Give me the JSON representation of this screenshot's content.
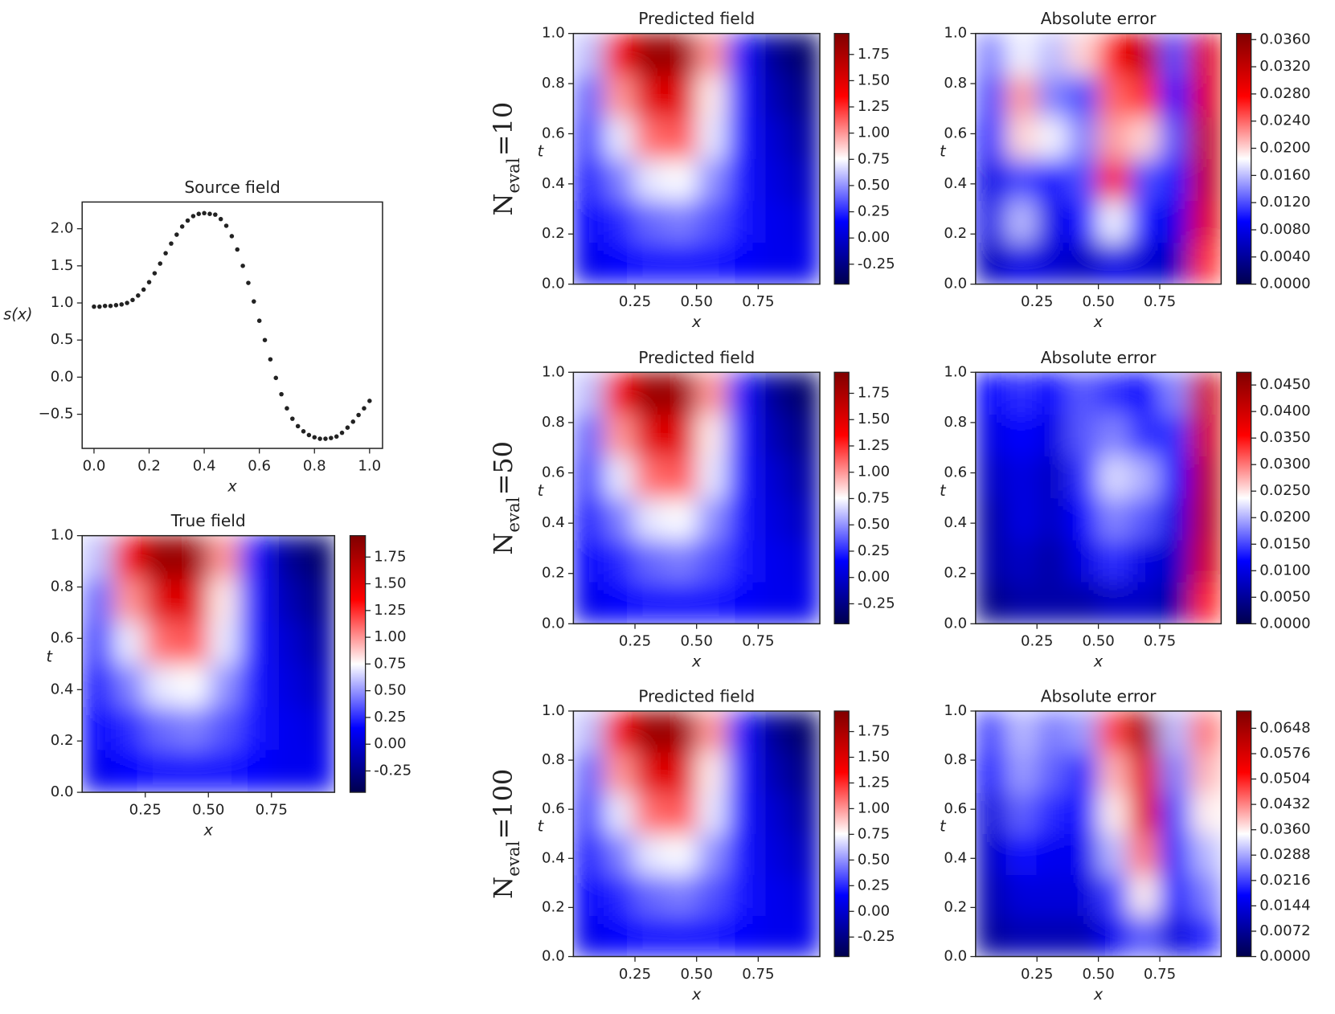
{
  "chart_data": [
    {
      "type": "scatter",
      "title": "Source field",
      "xlabel": "x",
      "ylabel": "s(x)",
      "color": "#222222",
      "x": [
        0,
        0.02,
        0.04,
        0.06,
        0.08,
        0.1,
        0.12,
        0.14,
        0.16,
        0.18,
        0.2,
        0.22,
        0.24,
        0.26,
        0.28,
        0.3,
        0.32,
        0.34,
        0.36,
        0.38,
        0.4,
        0.42,
        0.44,
        0.46,
        0.48,
        0.5,
        0.52,
        0.54,
        0.56,
        0.58,
        0.6,
        0.62,
        0.64,
        0.66,
        0.68,
        0.7,
        0.72,
        0.74,
        0.76,
        0.78,
        0.8,
        0.82,
        0.84,
        0.86,
        0.88,
        0.9,
        0.92,
        0.94,
        0.96,
        0.98,
        1.0
      ],
      "values": [
        0.95,
        0.95,
        0.96,
        0.96,
        0.97,
        0.98,
        1.0,
        1.04,
        1.1,
        1.18,
        1.28,
        1.4,
        1.53,
        1.67,
        1.8,
        1.92,
        2.03,
        2.11,
        2.17,
        2.2,
        2.21,
        2.2,
        2.19,
        2.13,
        2.04,
        1.9,
        1.72,
        1.5,
        1.27,
        1.02,
        0.76,
        0.5,
        0.24,
        -0.01,
        -0.23,
        -0.42,
        -0.56,
        -0.66,
        -0.73,
        -0.78,
        -0.81,
        -0.83,
        -0.83,
        -0.82,
        -0.8,
        -0.75,
        -0.68,
        -0.6,
        -0.51,
        -0.42,
        -0.32
      ],
      "xlim": [
        -0.043,
        1.047
      ],
      "ylim": [
        -0.96,
        2.36
      ],
      "xticks": [
        {
          "value": 0,
          "label": "0.0"
        },
        0.2,
        0.4,
        0.6,
        0.8,
        {
          "value": 1,
          "label": "1.0"
        }
      ],
      "yticks": [
        {
          "value": -0.5,
          "label": "−0.5"
        },
        {
          "value": 0,
          "label": "0.0"
        },
        0.5,
        {
          "value": 1,
          "label": "1.0"
        },
        1.5,
        {
          "value": 2,
          "label": "2.0"
        }
      ]
    },
    {
      "type": "heatmap",
      "title": "True field",
      "xlabel": "x",
      "ylabel": "t",
      "colormap": "seismic",
      "xlim": [
        0,
        1
      ],
      "ylim": [
        0,
        1
      ],
      "clim": [
        -0.45,
        1.95
      ],
      "xticks": [
        0.25,
        {
          "value": 0.5,
          "label": "0.50"
        },
        0.75
      ],
      "yticks": [
        {
          "value": 0,
          "label": "0.0"
        },
        0.2,
        0.4,
        0.6,
        0.8,
        {
          "value": 1,
          "label": "1.0"
        }
      ],
      "cticks": [
        {
          "value": -0.25,
          "label": "-0.25"
        },
        {
          "value": 0,
          "label": "0.00"
        },
        0.25,
        {
          "value": 0.5,
          "label": "0.50"
        },
        0.75,
        {
          "value": 1,
          "label": "1.00"
        },
        1.25,
        {
          "value": 1.5,
          "label": "1.50"
        },
        1.75
      ],
      "z": [
        [
          0.1,
          0.15,
          0.2,
          0.2,
          0.2,
          0.15,
          0.1,
          0.1
        ],
        [
          0.15,
          0.25,
          0.4,
          0.45,
          0.35,
          0.2,
          0.1,
          0.05
        ],
        [
          0.2,
          0.45,
          0.7,
          0.75,
          0.5,
          0.2,
          0.05,
          -0.05
        ],
        [
          0.3,
          0.7,
          1.1,
          1.15,
          0.7,
          0.2,
          0,
          -0.15
        ],
        [
          0.4,
          1.0,
          1.5,
          1.5,
          0.8,
          0.2,
          -0.1,
          -0.25
        ],
        [
          0.6,
          1.4,
          1.85,
          1.8,
          1.0,
          0.2,
          -0.2,
          -0.35
        ]
      ]
    },
    {
      "type": "heatmap",
      "title": "Predicted field",
      "xlabel": "x",
      "ylabel": "t",
      "colormap": "seismic",
      "row_label": [
        "N",
        "eval",
        "=10"
      ],
      "xlim": [
        0,
        1
      ],
      "ylim": [
        0,
        1
      ],
      "clim": [
        -0.44,
        1.95
      ],
      "xticks": [
        0.25,
        {
          "value": 0.5,
          "label": "0.50"
        },
        0.75
      ],
      "yticks": [
        {
          "value": 0,
          "label": "0.0"
        },
        0.2,
        0.4,
        0.6,
        0.8,
        {
          "value": 1,
          "label": "1.0"
        }
      ],
      "cticks": [
        {
          "value": -0.25,
          "label": "-0.25"
        },
        {
          "value": 0,
          "label": "0.00"
        },
        0.25,
        {
          "value": 0.5,
          "label": "0.50"
        },
        0.75,
        {
          "value": 1,
          "label": "1.00"
        },
        1.25,
        {
          "value": 1.5,
          "label": "1.50"
        },
        1.75
      ],
      "z": [
        [
          0.1,
          0.15,
          0.2,
          0.2,
          0.2,
          0.15,
          0.1,
          0.1
        ],
        [
          0.15,
          0.25,
          0.4,
          0.45,
          0.35,
          0.2,
          0.1,
          0.05
        ],
        [
          0.2,
          0.45,
          0.7,
          0.75,
          0.5,
          0.2,
          0.05,
          -0.05
        ],
        [
          0.3,
          0.7,
          1.1,
          1.15,
          0.7,
          0.2,
          0,
          -0.15
        ],
        [
          0.4,
          1.0,
          1.5,
          1.5,
          0.8,
          0.2,
          -0.1,
          -0.25
        ],
        [
          0.6,
          1.4,
          1.85,
          1.8,
          1.0,
          0.2,
          -0.2,
          -0.35
        ]
      ]
    },
    {
      "type": "heatmap",
      "title": "Predicted field",
      "xlabel": "x",
      "ylabel": "t",
      "colormap": "seismic",
      "row_label": [
        "N",
        "eval",
        "=50"
      ],
      "xlim": [
        0,
        1
      ],
      "ylim": [
        0,
        1
      ],
      "clim": [
        -0.44,
        1.95
      ],
      "xticks": [
        0.25,
        {
          "value": 0.5,
          "label": "0.50"
        },
        0.75
      ],
      "yticks": [
        {
          "value": 0,
          "label": "0.0"
        },
        0.2,
        0.4,
        0.6,
        0.8,
        {
          "value": 1,
          "label": "1.0"
        }
      ],
      "cticks": [
        {
          "value": -0.25,
          "label": "-0.25"
        },
        {
          "value": 0,
          "label": "0.00"
        },
        0.25,
        {
          "value": 0.5,
          "label": "0.50"
        },
        0.75,
        {
          "value": 1,
          "label": "1.00"
        },
        1.25,
        {
          "value": 1.5,
          "label": "1.50"
        },
        1.75
      ],
      "z": [
        [
          0.1,
          0.15,
          0.2,
          0.2,
          0.2,
          0.15,
          0.1,
          0.1
        ],
        [
          0.15,
          0.25,
          0.4,
          0.45,
          0.35,
          0.2,
          0.1,
          0.05
        ],
        [
          0.2,
          0.45,
          0.7,
          0.75,
          0.5,
          0.2,
          0.05,
          -0.05
        ],
        [
          0.3,
          0.7,
          1.1,
          1.15,
          0.7,
          0.2,
          0,
          -0.15
        ],
        [
          0.4,
          1.0,
          1.5,
          1.5,
          0.8,
          0.2,
          -0.1,
          -0.25
        ],
        [
          0.6,
          1.4,
          1.85,
          1.8,
          1.0,
          0.2,
          -0.2,
          -0.35
        ]
      ]
    },
    {
      "type": "heatmap",
      "title": "Predicted field",
      "xlabel": "x",
      "ylabel": "t",
      "colormap": "seismic",
      "row_label": [
        "N",
        "eval",
        "=100"
      ],
      "xlim": [
        0,
        1
      ],
      "ylim": [
        0,
        1
      ],
      "clim": [
        -0.44,
        1.95
      ],
      "xticks": [
        0.25,
        {
          "value": 0.5,
          "label": "0.50"
        },
        0.75
      ],
      "yticks": [
        {
          "value": 0,
          "label": "0.0"
        },
        0.2,
        0.4,
        0.6,
        0.8,
        {
          "value": 1,
          "label": "1.0"
        }
      ],
      "cticks": [
        {
          "value": -0.25,
          "label": "-0.25"
        },
        {
          "value": 0,
          "label": "0.00"
        },
        0.25,
        {
          "value": 0.5,
          "label": "0.50"
        },
        0.75,
        {
          "value": 1,
          "label": "1.00"
        },
        1.25,
        {
          "value": 1.5,
          "label": "1.50"
        },
        1.75
      ],
      "z": [
        [
          0.1,
          0.15,
          0.2,
          0.2,
          0.2,
          0.15,
          0.1,
          0.1
        ],
        [
          0.15,
          0.25,
          0.4,
          0.45,
          0.35,
          0.2,
          0.1,
          0.05
        ],
        [
          0.2,
          0.45,
          0.7,
          0.75,
          0.5,
          0.2,
          0.05,
          -0.05
        ],
        [
          0.3,
          0.7,
          1.1,
          1.15,
          0.7,
          0.2,
          0,
          -0.15
        ],
        [
          0.4,
          1.0,
          1.5,
          1.5,
          0.8,
          0.2,
          -0.1,
          -0.25
        ],
        [
          0.6,
          1.4,
          1.85,
          1.8,
          1.0,
          0.2,
          -0.2,
          -0.35
        ]
      ]
    },
    {
      "type": "heatmap",
      "title": "Absolute error",
      "xlabel": "x",
      "ylabel": "t",
      "colormap": "seismic",
      "xlim": [
        0,
        1
      ],
      "ylim": [
        0,
        1
      ],
      "clim": [
        0,
        0.0369
      ],
      "xticks": [
        0.25,
        {
          "value": 0.5,
          "label": "0.50"
        },
        0.75
      ],
      "yticks": [
        {
          "value": 0,
          "label": "0.0"
        },
        0.2,
        0.4,
        0.6,
        0.8,
        {
          "value": 1,
          "label": "1.0"
        }
      ],
      "cticks": [
        {
          "value": 0,
          "label": "0.0000"
        },
        {
          "value": 0.004,
          "label": "0.0040"
        },
        {
          "value": 0.008,
          "label": "0.0080"
        },
        {
          "value": 0.012,
          "label": "0.0120"
        },
        {
          "value": 0.016,
          "label": "0.0160"
        },
        {
          "value": 0.02,
          "label": "0.0200"
        },
        {
          "value": 0.024,
          "label": "0.0240"
        },
        {
          "value": 0.028,
          "label": "0.0280"
        },
        {
          "value": 0.032,
          "label": "0.0320"
        },
        {
          "value": 0.036,
          "label": "0.0360"
        }
      ],
      "z": [
        [
          0.006,
          0.008,
          0.007,
          0.006,
          0.008,
          0.007,
          0.006,
          0.026
        ],
        [
          0.008,
          0.016,
          0.008,
          0.01,
          0.018,
          0.01,
          0.008,
          0.03
        ],
        [
          0.008,
          0.012,
          0.01,
          0.012,
          0.026,
          0.012,
          0.01,
          0.032
        ],
        [
          0.01,
          0.02,
          0.018,
          0.014,
          0.022,
          0.02,
          0.012,
          0.032
        ],
        [
          0.012,
          0.022,
          0.014,
          0.012,
          0.024,
          0.026,
          0.01,
          0.03
        ],
        [
          0.014,
          0.018,
          0.016,
          0.02,
          0.028,
          0.032,
          0.012,
          0.03
        ]
      ]
    },
    {
      "type": "heatmap",
      "title": "Absolute error",
      "xlabel": "x",
      "ylabel": "t",
      "colormap": "seismic",
      "xlim": [
        0,
        1
      ],
      "ylim": [
        0,
        1
      ],
      "clim": [
        0,
        0.0474
      ],
      "xticks": [
        0.25,
        {
          "value": 0.5,
          "label": "0.50"
        },
        0.75
      ],
      "yticks": [
        {
          "value": 0,
          "label": "0.0"
        },
        0.2,
        0.4,
        0.6,
        0.8,
        {
          "value": 1,
          "label": "1.0"
        }
      ],
      "cticks": [
        {
          "value": 0,
          "label": "0.0000"
        },
        {
          "value": 0.005,
          "label": "0.0050"
        },
        {
          "value": 0.01,
          "label": "0.0100"
        },
        {
          "value": 0.015,
          "label": "0.0150"
        },
        {
          "value": 0.02,
          "label": "0.0200"
        },
        {
          "value": 0.025,
          "label": "0.0250"
        },
        {
          "value": 0.03,
          "label": "0.0300"
        },
        {
          "value": 0.035,
          "label": "0.0350"
        },
        {
          "value": 0.04,
          "label": "0.0400"
        },
        {
          "value": 0.045,
          "label": "0.0450"
        }
      ],
      "z": [
        [
          0.004,
          0.006,
          0.006,
          0.006,
          0.008,
          0.008,
          0.006,
          0.034
        ],
        [
          0.006,
          0.008,
          0.006,
          0.01,
          0.014,
          0.01,
          0.008,
          0.04
        ],
        [
          0.006,
          0.01,
          0.008,
          0.012,
          0.018,
          0.016,
          0.01,
          0.042
        ],
        [
          0.008,
          0.01,
          0.008,
          0.014,
          0.022,
          0.02,
          0.012,
          0.042
        ],
        [
          0.01,
          0.012,
          0.01,
          0.016,
          0.018,
          0.014,
          0.014,
          0.04
        ],
        [
          0.012,
          0.014,
          0.012,
          0.016,
          0.014,
          0.012,
          0.018,
          0.04
        ]
      ]
    },
    {
      "type": "heatmap",
      "title": "Absolute error",
      "xlabel": "x",
      "ylabel": "t",
      "colormap": "seismic",
      "xlim": [
        0,
        1
      ],
      "ylim": [
        0,
        1
      ],
      "clim": [
        0,
        0.0697
      ],
      "xticks": [
        0.25,
        {
          "value": 0.5,
          "label": "0.50"
        },
        0.75
      ],
      "yticks": [
        {
          "value": 0,
          "label": "0.0"
        },
        0.2,
        0.4,
        0.6,
        0.8,
        {
          "value": 1,
          "label": "1.0"
        }
      ],
      "cticks": [
        {
          "value": 0,
          "label": "0.0000"
        },
        {
          "value": 0.0072,
          "label": "0.0072"
        },
        {
          "value": 0.0144,
          "label": "0.0144"
        },
        {
          "value": 0.0216,
          "label": "0.0216"
        },
        {
          "value": 0.0288,
          "label": "0.0288"
        },
        {
          "value": 0.036,
          "label": "0.0360"
        },
        {
          "value": 0.0432,
          "label": "0.0432"
        },
        {
          "value": 0.0504,
          "label": "0.0504"
        },
        {
          "value": 0.0576,
          "label": "0.0576"
        },
        {
          "value": 0.0648,
          "label": "0.0648"
        }
      ],
      "z": [
        [
          0.008,
          0.01,
          0.01,
          0.01,
          0.016,
          0.024,
          0.014,
          0.02
        ],
        [
          0.01,
          0.014,
          0.014,
          0.014,
          0.022,
          0.036,
          0.018,
          0.026
        ],
        [
          0.012,
          0.018,
          0.016,
          0.016,
          0.03,
          0.044,
          0.02,
          0.03
        ],
        [
          0.014,
          0.024,
          0.02,
          0.018,
          0.036,
          0.056,
          0.022,
          0.036
        ],
        [
          0.018,
          0.028,
          0.024,
          0.02,
          0.04,
          0.056,
          0.026,
          0.04
        ],
        [
          0.022,
          0.03,
          0.026,
          0.028,
          0.048,
          0.064,
          0.03,
          0.044
        ]
      ]
    }
  ]
}
